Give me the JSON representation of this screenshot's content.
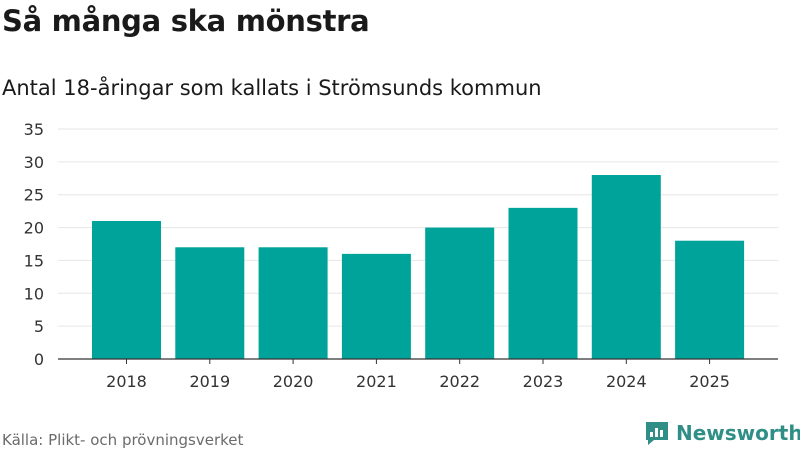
{
  "header": {
    "title": "Så många ska mönstra",
    "subtitle": "Antal 18-åringar som kallats i Strömsunds kommun"
  },
  "footer": {
    "source": "Källa: Plikt- och prövningsverket",
    "brand": "Newsworthy",
    "brand_icon": "newsworthy-logo-icon"
  },
  "colors": {
    "bar": "#00a39a",
    "brand": "#2f8f86",
    "grid": "#e6e6e6",
    "axis": "#333333"
  },
  "chart_data": {
    "type": "bar",
    "title": "Så många ska mönstra",
    "subtitle": "Antal 18-åringar som kallats i Strömsunds kommun",
    "xlabel": "",
    "ylabel": "",
    "categories": [
      "2018",
      "2019",
      "2020",
      "2021",
      "2022",
      "2023",
      "2024",
      "2025"
    ],
    "values": [
      21,
      17,
      17,
      16,
      20,
      23,
      28,
      18
    ],
    "ylim": [
      0,
      35
    ],
    "yticks": [
      0,
      5,
      10,
      15,
      20,
      25,
      30,
      35
    ],
    "grid": true,
    "legend": "none"
  }
}
